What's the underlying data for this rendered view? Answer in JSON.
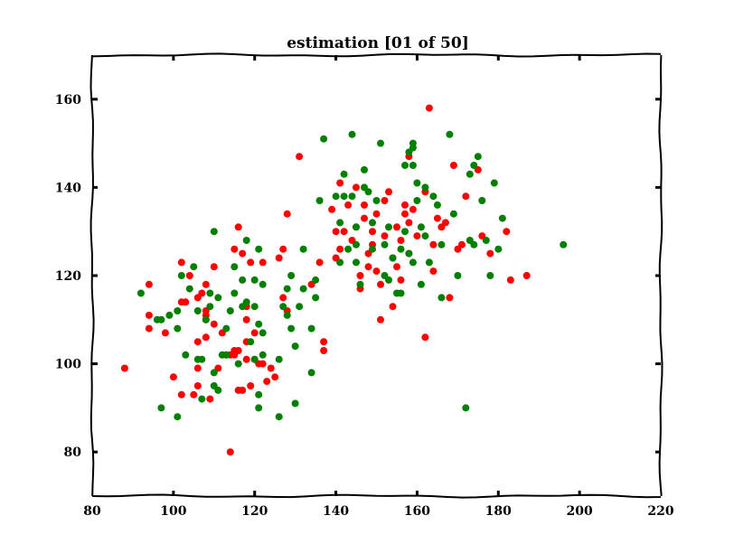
{
  "chart_data": {
    "type": "scatter",
    "title": "estimation [01 of 50]",
    "xlabel": "",
    "ylabel": "",
    "xlim": [
      80,
      220
    ],
    "ylim": [
      70,
      170
    ],
    "xticks": [
      80,
      100,
      120,
      140,
      160,
      180,
      200,
      220
    ],
    "yticks": [
      80,
      100,
      120,
      140,
      160
    ],
    "grid": false,
    "series": [
      {
        "color": "#ff0000",
        "points": [
          [
            88,
            99
          ],
          [
            94,
            108
          ],
          [
            94,
            111
          ],
          [
            94,
            118
          ],
          [
            98,
            107
          ],
          [
            100,
            97
          ],
          [
            102,
            93
          ],
          [
            102,
            123
          ],
          [
            102,
            114
          ],
          [
            103,
            114
          ],
          [
            104,
            120
          ],
          [
            105,
            93
          ],
          [
            106,
            115
          ],
          [
            106,
            105
          ],
          [
            106,
            99
          ],
          [
            106,
            95
          ],
          [
            107,
            116
          ],
          [
            108,
            118
          ],
          [
            108,
            112
          ],
          [
            108,
            111
          ],
          [
            108,
            110
          ],
          [
            108,
            106
          ],
          [
            109,
            92
          ],
          [
            110,
            122
          ],
          [
            110,
            109
          ],
          [
            111,
            99
          ],
          [
            112,
            107
          ],
          [
            113,
            102
          ],
          [
            114,
            102
          ],
          [
            114,
            80
          ],
          [
            115,
            102
          ],
          [
            115,
            103
          ],
          [
            115,
            126
          ],
          [
            116,
            131
          ],
          [
            116,
            103
          ],
          [
            116,
            94
          ],
          [
            117,
            125
          ],
          [
            117,
            94
          ],
          [
            118,
            113
          ],
          [
            118,
            110
          ],
          [
            118,
            105
          ],
          [
            118,
            101
          ],
          [
            119,
            95
          ],
          [
            119,
            123
          ],
          [
            120,
            107
          ],
          [
            120,
            101
          ],
          [
            121,
            100
          ],
          [
            122,
            123
          ],
          [
            122,
            100
          ],
          [
            123,
            96
          ],
          [
            124,
            99
          ],
          [
            125,
            97
          ],
          [
            126,
            124
          ],
          [
            127,
            126
          ],
          [
            127,
            115
          ],
          [
            128,
            112
          ],
          [
            128,
            134
          ],
          [
            131,
            147
          ],
          [
            134,
            118
          ],
          [
            136,
            123
          ],
          [
            137,
            103
          ],
          [
            137,
            105
          ],
          [
            139,
            135
          ],
          [
            140,
            130
          ],
          [
            140,
            124
          ],
          [
            141,
            126
          ],
          [
            141,
            141
          ],
          [
            142,
            130
          ],
          [
            143,
            136
          ],
          [
            144,
            128
          ],
          [
            145,
            140
          ],
          [
            145,
            131
          ],
          [
            146,
            120
          ],
          [
            146,
            117
          ],
          [
            147,
            136
          ],
          [
            147,
            133
          ],
          [
            148,
            125
          ],
          [
            148,
            122
          ],
          [
            149,
            130
          ],
          [
            149,
            127
          ],
          [
            150,
            134
          ],
          [
            150,
            121
          ],
          [
            151,
            118
          ],
          [
            151,
            110
          ],
          [
            152,
            137
          ],
          [
            152,
            129
          ],
          [
            153,
            139
          ],
          [
            154,
            124
          ],
          [
            154,
            113
          ],
          [
            155,
            131
          ],
          [
            155,
            122
          ],
          [
            156,
            128
          ],
          [
            156,
            119
          ],
          [
            157,
            136
          ],
          [
            157,
            134
          ],
          [
            158,
            132
          ],
          [
            158,
            147
          ],
          [
            158,
            125
          ],
          [
            159,
            135
          ],
          [
            160,
            129
          ],
          [
            162,
            106
          ],
          [
            162,
            139
          ],
          [
            163,
            158
          ],
          [
            164,
            127
          ],
          [
            164,
            121
          ],
          [
            165,
            133
          ],
          [
            166,
            131
          ],
          [
            167,
            132
          ],
          [
            168,
            115
          ],
          [
            169,
            145
          ],
          [
            170,
            126
          ],
          [
            171,
            127
          ],
          [
            172,
            138
          ],
          [
            175,
            144
          ],
          [
            176,
            129
          ],
          [
            178,
            125
          ],
          [
            182,
            130
          ],
          [
            183,
            119
          ],
          [
            187,
            120
          ]
        ]
      },
      {
        "color": "#008000",
        "points": [
          [
            92,
            116
          ],
          [
            96,
            110
          ],
          [
            97,
            110
          ],
          [
            97,
            90
          ],
          [
            99,
            111
          ],
          [
            101,
            112
          ],
          [
            101,
            108
          ],
          [
            101,
            88
          ],
          [
            102,
            120
          ],
          [
            103,
            102
          ],
          [
            104,
            117
          ],
          [
            105,
            122
          ],
          [
            106,
            112
          ],
          [
            106,
            101
          ],
          [
            107,
            92
          ],
          [
            107,
            101
          ],
          [
            108,
            110
          ],
          [
            109,
            116
          ],
          [
            109,
            113
          ],
          [
            110,
            95
          ],
          [
            110,
            98
          ],
          [
            110,
            130
          ],
          [
            111,
            94
          ],
          [
            111,
            115
          ],
          [
            112,
            102
          ],
          [
            113,
            108
          ],
          [
            113,
            102
          ],
          [
            114,
            112
          ],
          [
            115,
            122
          ],
          [
            115,
            116
          ],
          [
            116,
            100
          ],
          [
            117,
            119
          ],
          [
            117,
            113
          ],
          [
            118,
            114
          ],
          [
            118,
            128
          ],
          [
            119,
            105
          ],
          [
            120,
            119
          ],
          [
            120,
            113
          ],
          [
            120,
            101
          ],
          [
            121,
            126
          ],
          [
            121,
            109
          ],
          [
            121,
            93
          ],
          [
            121,
            90
          ],
          [
            122,
            118
          ],
          [
            122,
            107
          ],
          [
            122,
            102
          ],
          [
            126,
            88
          ],
          [
            126,
            101
          ],
          [
            127,
            113
          ],
          [
            128,
            111
          ],
          [
            128,
            117
          ],
          [
            129,
            120
          ],
          [
            129,
            108
          ],
          [
            130,
            104
          ],
          [
            130,
            91
          ],
          [
            131,
            113
          ],
          [
            132,
            117
          ],
          [
            132,
            126
          ],
          [
            134,
            108
          ],
          [
            134,
            98
          ],
          [
            135,
            115
          ],
          [
            135,
            119
          ],
          [
            136,
            137
          ],
          [
            137,
            151
          ],
          [
            140,
            138
          ],
          [
            141,
            132
          ],
          [
            141,
            123
          ],
          [
            142,
            143
          ],
          [
            142,
            138
          ],
          [
            143,
            126
          ],
          [
            144,
            152
          ],
          [
            144,
            138
          ],
          [
            145,
            127
          ],
          [
            145,
            131
          ],
          [
            145,
            123
          ],
          [
            146,
            118
          ],
          [
            147,
            144
          ],
          [
            147,
            140
          ],
          [
            148,
            139
          ],
          [
            149,
            132
          ],
          [
            149,
            126
          ],
          [
            150,
            137
          ],
          [
            151,
            150
          ],
          [
            152,
            127
          ],
          [
            152,
            120
          ],
          [
            153,
            131
          ],
          [
            153,
            119
          ],
          [
            154,
            124
          ],
          [
            155,
            116
          ],
          [
            156,
            126
          ],
          [
            156,
            116
          ],
          [
            157,
            145
          ],
          [
            157,
            130
          ],
          [
            158,
            148
          ],
          [
            158,
            125
          ],
          [
            159,
            150
          ],
          [
            159,
            149
          ],
          [
            159,
            145
          ],
          [
            159,
            123
          ],
          [
            160,
            141
          ],
          [
            160,
            137
          ],
          [
            161,
            131
          ],
          [
            161,
            118
          ],
          [
            162,
            140
          ],
          [
            162,
            129
          ],
          [
            163,
            123
          ],
          [
            164,
            138
          ],
          [
            165,
            136
          ],
          [
            166,
            127
          ],
          [
            166,
            115
          ],
          [
            168,
            152
          ],
          [
            169,
            134
          ],
          [
            170,
            120
          ],
          [
            172,
            90
          ],
          [
            173,
            128
          ],
          [
            173,
            143
          ],
          [
            174,
            145
          ],
          [
            174,
            127
          ],
          [
            175,
            147
          ],
          [
            176,
            137
          ],
          [
            177,
            128
          ],
          [
            178,
            120
          ],
          [
            179,
            141
          ],
          [
            180,
            126
          ],
          [
            181,
            133
          ],
          [
            196,
            127
          ]
        ]
      }
    ]
  }
}
